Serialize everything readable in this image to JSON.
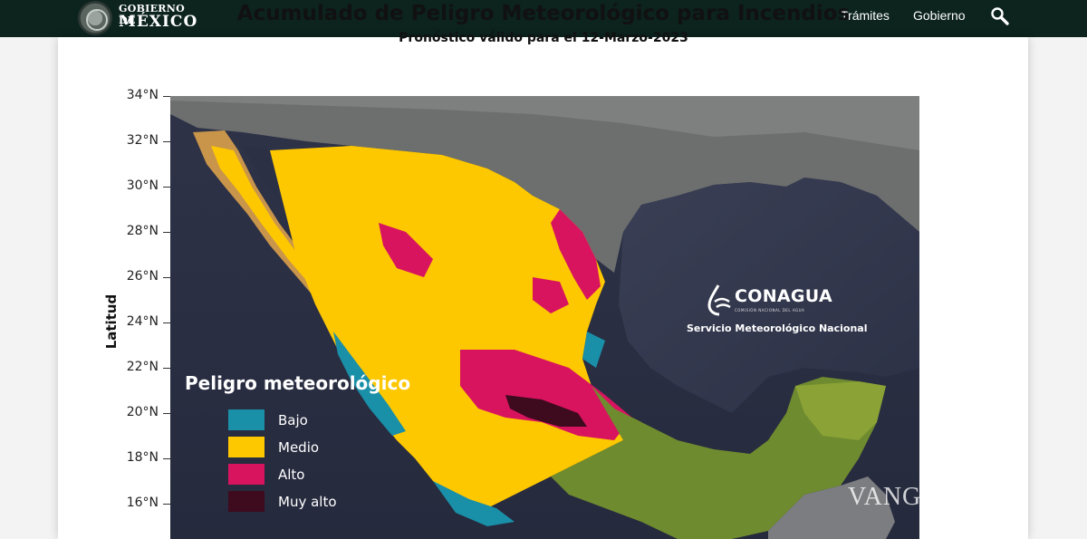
{
  "header": {
    "logo_line1": "GOBIERNO DE",
    "logo_line2": "MÉXICO",
    "nav": [
      "Trámites",
      "Gobierno"
    ],
    "search_icon": "search-icon",
    "background": "#0c231e"
  },
  "map": {
    "title": "Acumulado de Peligro Meteorológico para Incendios",
    "subtitle": "Pronóstico válido para el 12-Marzo-2023",
    "y_axis_label": "Latitud",
    "y_ticks": [
      "34°N",
      "32°N",
      "30°N",
      "28°N",
      "26°N",
      "24°N",
      "22°N",
      "20°N",
      "18°N",
      "16°N"
    ],
    "legend": {
      "title": "Peligro meteorológico",
      "items": [
        {
          "label": "Bajo",
          "color": "#1a8fa8"
        },
        {
          "label": "Medio",
          "color": "#fec800"
        },
        {
          "label": "Alto",
          "color": "#d8145f"
        },
        {
          "label": "Muy alto",
          "color": "#3e0a1e"
        }
      ]
    },
    "logo_name": "CONAGUA",
    "logo_subtitle": "COMISIÓN NACIONAL DEL AGUA",
    "service_label": "Servicio Meteorológico Nacional"
  },
  "watermark": "VANG"
}
